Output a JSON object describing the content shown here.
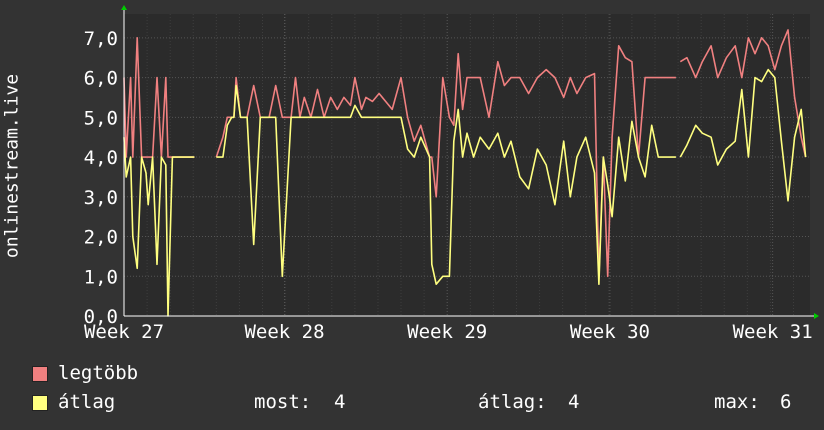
{
  "chart_data": {
    "type": "line",
    "ylabel": "onlinestream.live",
    "ylim": [
      0,
      7.6
    ],
    "yticks": [
      0,
      1,
      2,
      3,
      4,
      5,
      6,
      7
    ],
    "ytick_labels": [
      "0,0",
      "1,0",
      "2,0",
      "3,0",
      "4,0",
      "5,0",
      "6,0",
      "7,0"
    ],
    "xlim": [
      0,
      31.2
    ],
    "xticks": [
      {
        "x": 0,
        "label": "Week 27"
      },
      {
        "x": 7.3,
        "label": "Week 28"
      },
      {
        "x": 14.7,
        "label": "Week 29"
      },
      {
        "x": 22.1,
        "label": "Week 30"
      },
      {
        "x": 29.5,
        "label": "Week 31"
      }
    ],
    "grid": true,
    "series": [
      {
        "name": "legtöbb",
        "color": "#f08080",
        "x": [
          0,
          0.1,
          0.3,
          0.4,
          0.6,
          0.8,
          1.0,
          1.1,
          1.3,
          1.5,
          1.7,
          1.9,
          2.0,
          2.2,
          2.4,
          2.6,
          2.8,
          3.0,
          3.2,
          null,
          4.2,
          4.5,
          4.7,
          4.9,
          5.0,
          5.1,
          5.3,
          5.6,
          5.9,
          6.2,
          6.6,
          6.9,
          7.2,
          7.6,
          7.8,
          8.0,
          8.2,
          8.5,
          8.8,
          9.1,
          9.4,
          9.7,
          10.0,
          10.3,
          10.5,
          10.8,
          11.0,
          11.3,
          11.6,
          11.9,
          12.2,
          12.6,
          12.9,
          13.2,
          13.5,
          13.9,
          14.0,
          14.2,
          14.5,
          14.8,
          15.0,
          15.2,
          15.4,
          15.6,
          15.9,
          16.2,
          16.6,
          17.0,
          17.3,
          17.6,
          18.0,
          18.4,
          18.8,
          19.2,
          19.6,
          20.0,
          20.3,
          20.6,
          21.0,
          21.4,
          21.6,
          21.8,
          22.0,
          22.2,
          22.5,
          22.8,
          23.1,
          23.4,
          23.7,
          24.0,
          24.3,
          24.6,
          24.9,
          25.1,
          null,
          25.3,
          25.6,
          26.0,
          26.3,
          26.7,
          27.0,
          27.4,
          27.8,
          28.1,
          28.4,
          28.7,
          29.0,
          29.3,
          29.6,
          29.9,
          30.2,
          30.5,
          30.8,
          31.0
        ],
        "values": [
          6,
          4,
          6,
          4,
          7,
          4,
          4,
          4,
          4,
          6,
          4,
          6,
          4,
          4,
          4,
          4,
          4,
          4,
          4,
          null,
          4,
          4.5,
          5,
          5,
          5,
          6,
          5,
          5,
          5.8,
          5,
          5,
          5.8,
          5,
          5,
          6,
          5,
          5.5,
          5,
          5.7,
          5,
          5.5,
          5.2,
          5.5,
          5.3,
          6,
          5.2,
          5.5,
          5.4,
          5.6,
          5.4,
          5.2,
          6,
          5,
          4.4,
          4.8,
          4,
          4,
          3,
          6,
          5,
          4.8,
          6.6,
          5.2,
          6,
          6,
          6,
          5,
          6.4,
          5.8,
          6,
          6,
          5.6,
          6,
          6.2,
          6,
          5.5,
          6,
          5.6,
          6,
          6.1,
          1,
          4,
          1,
          4.5,
          6.8,
          6.5,
          6.4,
          4,
          6,
          6,
          6,
          6,
          6,
          6,
          null,
          6.4,
          6.5,
          6,
          6.4,
          6.8,
          6,
          6.5,
          6.8,
          6,
          7,
          6.6,
          7,
          6.8,
          6.2,
          6.8,
          7.2,
          5.5,
          4.5,
          4
        ]
      },
      {
        "name": "átlag",
        "color": "#ffff80",
        "x": [
          0,
          0.1,
          0.3,
          0.4,
          0.6,
          0.8,
          1.0,
          1.1,
          1.3,
          1.5,
          1.7,
          1.9,
          2.0,
          2.2,
          2.4,
          2.6,
          2.8,
          3.0,
          3.2,
          null,
          4.2,
          4.5,
          4.7,
          4.9,
          5.0,
          5.1,
          5.3,
          5.6,
          5.9,
          6.2,
          6.6,
          6.9,
          7.2,
          7.6,
          7.8,
          8.0,
          8.2,
          8.5,
          8.8,
          9.1,
          9.4,
          9.7,
          10.0,
          10.3,
          10.5,
          10.8,
          11.0,
          11.3,
          11.6,
          11.9,
          12.2,
          12.6,
          12.9,
          13.2,
          13.5,
          13.9,
          14.0,
          14.2,
          14.5,
          14.8,
          15.0,
          15.2,
          15.4,
          15.6,
          15.9,
          16.2,
          16.6,
          17.0,
          17.3,
          17.6,
          18.0,
          18.4,
          18.8,
          19.2,
          19.6,
          20.0,
          20.3,
          20.6,
          21.0,
          21.4,
          21.6,
          21.8,
          22.0,
          22.2,
          22.5,
          22.8,
          23.1,
          23.4,
          23.7,
          24.0,
          24.3,
          24.6,
          24.9,
          25.1,
          null,
          25.3,
          25.6,
          26.0,
          26.3,
          26.7,
          27.0,
          27.4,
          27.8,
          28.1,
          28.4,
          28.7,
          29.0,
          29.3,
          29.6,
          29.9,
          30.2,
          30.5,
          30.8,
          31.0
        ],
        "values": [
          4.5,
          3.5,
          4,
          2,
          1.2,
          4,
          3.6,
          2.8,
          4,
          1.3,
          4,
          3.8,
          0,
          4,
          4,
          4,
          4,
          4,
          4,
          null,
          4,
          4,
          4.8,
          5,
          5,
          5.8,
          5,
          5,
          1.8,
          5,
          5,
          5,
          1,
          5,
          5,
          5,
          5,
          5,
          5,
          5,
          5,
          5,
          5,
          5,
          5.3,
          5,
          5,
          5,
          5,
          5,
          5,
          5,
          4.2,
          4,
          4.5,
          4,
          1.3,
          0.8,
          1,
          1,
          4.4,
          5.2,
          4,
          4.6,
          4,
          4.5,
          4.2,
          4.6,
          4,
          4.4,
          3.5,
          3.2,
          4.2,
          3.8,
          2.8,
          4.4,
          3,
          4,
          4.5,
          3.6,
          0.8,
          4,
          3.3,
          2.5,
          4.5,
          3.4,
          4.9,
          4,
          3.5,
          4.8,
          4,
          4,
          4,
          4,
          null,
          4,
          4.3,
          4.8,
          4.6,
          4.5,
          3.8,
          4.2,
          4.4,
          5.7,
          4,
          6,
          5.9,
          6.2,
          6,
          4.4,
          2.9,
          4.5,
          5.2,
          4
        ]
      }
    ]
  },
  "legend": {
    "items": [
      {
        "label": "legtöbb",
        "color": "#f08080"
      },
      {
        "label": "átlag",
        "color": "#ffff80"
      }
    ],
    "stats": {
      "most_label": "most:",
      "most_value": "4",
      "atlag_label": "átlag:",
      "atlag_value": "4",
      "max_label": "max:",
      "max_value": "6"
    }
  },
  "colors": {
    "background": "#333333",
    "plot_background": "#2b2b2b",
    "grid_major": "#555555",
    "grid_minor": "#3e3e3e",
    "axis": "#ffffff",
    "arrow": "#00cc00",
    "text": "#ffffff"
  }
}
